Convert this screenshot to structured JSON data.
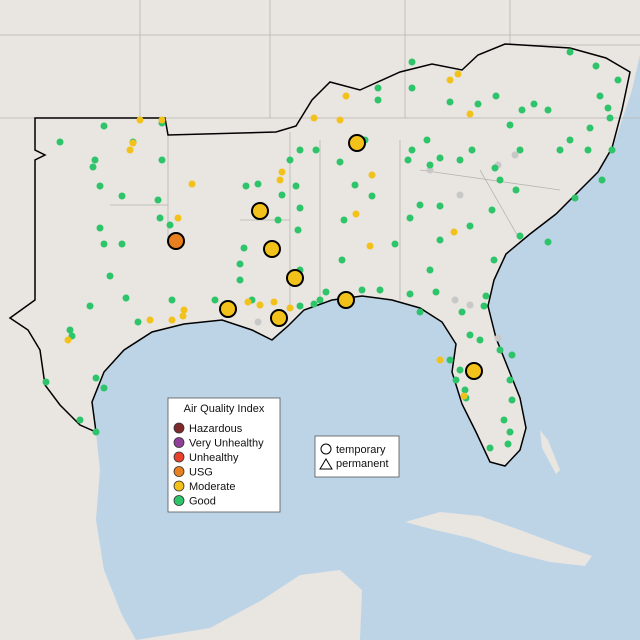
{
  "legend": {
    "title": "Air Quality Index",
    "categories": [
      {
        "label": "Hazardous",
        "color": "#7e2a2a"
      },
      {
        "label": "Very Unhealthy",
        "color": "#8f3f97"
      },
      {
        "label": "Unhealthy",
        "color": "#e8412c"
      },
      {
        "label": "USG",
        "color": "#e8801f"
      },
      {
        "label": "Moderate",
        "color": "#f2c21b"
      },
      {
        "label": "Good",
        "color": "#2ec46a"
      }
    ]
  },
  "shape_legend": {
    "items": [
      "temporary",
      "permanent"
    ]
  }
}
